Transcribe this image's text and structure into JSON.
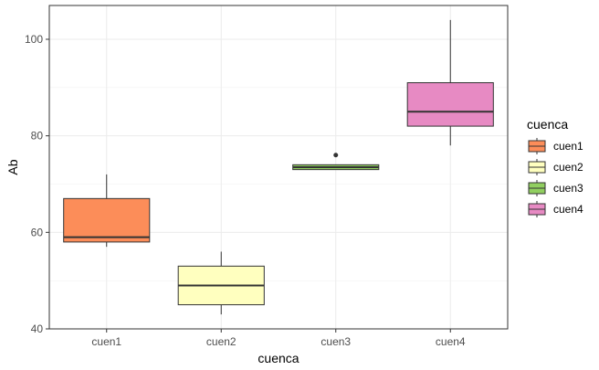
{
  "chart_data": {
    "type": "boxplot",
    "title": "",
    "xlabel": "cuenca",
    "ylabel": "Ab",
    "categories": [
      "cuen1",
      "cuen2",
      "cuen3",
      "cuen4"
    ],
    "ylim": [
      40,
      107
    ],
    "yticks": [
      40,
      60,
      80,
      100
    ],
    "grid": true,
    "legend": {
      "title": "cuenca",
      "position": "right",
      "entries": [
        "cuen1",
        "cuen2",
        "cuen3",
        "cuen4"
      ]
    },
    "series": [
      {
        "category": "cuen1",
        "min": 57,
        "q1": 58,
        "median": 59,
        "q3": 67,
        "max": 72,
        "outliers": [],
        "color": "#FC8D59"
      },
      {
        "category": "cuen2",
        "min": 43,
        "q1": 45,
        "median": 49,
        "q3": 53,
        "max": 56,
        "outliers": [],
        "color": "#FFFFBF"
      },
      {
        "category": "cuen3",
        "min": 73,
        "q1": 73,
        "median": 73.5,
        "q3": 74,
        "max": 74,
        "outliers": [
          76
        ],
        "color": "#91CF60"
      },
      {
        "category": "cuen4",
        "min": 78,
        "q1": 82,
        "median": 85,
        "q3": 91,
        "max": 104,
        "outliers": [],
        "color": "#E78AC3"
      }
    ]
  }
}
